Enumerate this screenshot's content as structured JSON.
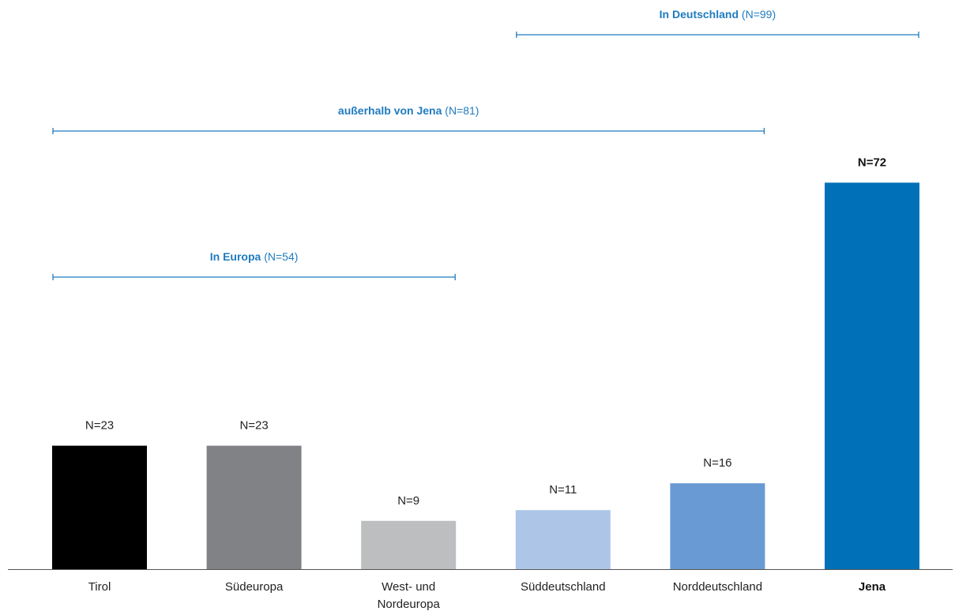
{
  "chart_data": {
    "type": "bar",
    "categories": [
      {
        "lines": [
          "Tirol"
        ],
        "bold": false
      },
      {
        "lines": [
          "Südeuropa"
        ],
        "bold": false
      },
      {
        "lines": [
          "West- und",
          "Nordeuropa"
        ],
        "bold": false
      },
      {
        "lines": [
          "Süddeutschland"
        ],
        "bold": false
      },
      {
        "lines": [
          "Norddeutschland"
        ],
        "bold": false
      },
      {
        "lines": [
          "Jena"
        ],
        "bold": true
      }
    ],
    "values": [
      23,
      23,
      9,
      11,
      16,
      72
    ],
    "value_labels": [
      "N=23",
      "N=23",
      "N=9",
      "N=11",
      "N=16",
      "N=72"
    ],
    "value_label_bold": [
      false,
      false,
      false,
      false,
      false,
      true
    ],
    "bar_colors": [
      "#000000",
      "#808285",
      "#bcbec0",
      "#adc6e7",
      "#699ad4",
      "#0070b8"
    ],
    "groups": [
      {
        "name": "In Deutschland",
        "count": "(N=99)",
        "from": 3,
        "to": 5
      },
      {
        "name": "außerhalb von Jena",
        "count": "(N=81)",
        "from": 0,
        "to": 4
      },
      {
        "name": "In Europa",
        "count": "(N=54)",
        "from": 0,
        "to": 2
      }
    ],
    "group_color": "#1f7bbf",
    "axis_color": "#555555",
    "grid": false,
    "legend": "none"
  }
}
